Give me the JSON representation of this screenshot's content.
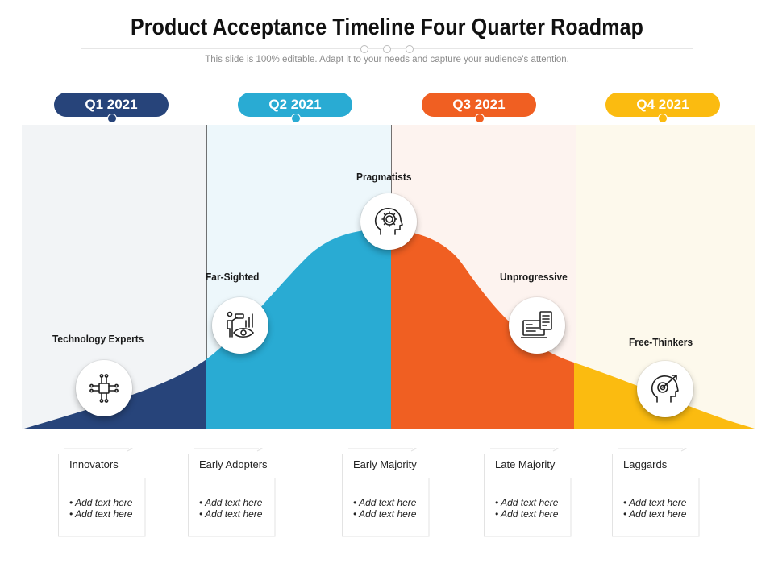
{
  "header": {
    "title": "Product Acceptance Timeline Four Quarter Roadmap",
    "subtitle": "This slide is 100% editable. Adapt it to your needs and capture your audience's attention."
  },
  "quarters": [
    {
      "label": "Q1 2021",
      "color": "#27447a",
      "band": "#f2f4f6"
    },
    {
      "label": "Q2 2021",
      "color": "#29abd3",
      "band": "#ecf6fa"
    },
    {
      "label": "Q3 2021",
      "color": "#f05f22",
      "band": "#fdf2ee"
    },
    {
      "label": "Q4 2021",
      "color": "#fbbb10",
      "band": "#fdf9ec"
    }
  ],
  "personas": [
    {
      "label": "Technology  Experts",
      "icon": "circuit-icon"
    },
    {
      "label": "Far-Sighted",
      "icon": "binoculars-eye-chart-icon"
    },
    {
      "label": "Pragmatists",
      "icon": "head-gear-icon"
    },
    {
      "label": "Unprogressive",
      "icon": "screen-documents-icon"
    },
    {
      "label": "Free-Thinkers",
      "icon": "head-target-arrow-icon"
    }
  ],
  "segments": [
    {
      "title": "Innovators",
      "bullets": [
        "• Add text here",
        "• Add text here"
      ]
    },
    {
      "title": "Early Adopters",
      "bullets": [
        "• Add text here",
        "• Add text here"
      ]
    },
    {
      "title": "Early Majority",
      "bullets": [
        "• Add text here",
        "• Add text here"
      ]
    },
    {
      "title": "Late Majority",
      "bullets": [
        "• Add text here",
        "• Add text here"
      ]
    },
    {
      "title": "Laggards",
      "bullets": [
        "• Add text here",
        "• Add text here"
      ]
    }
  ]
}
